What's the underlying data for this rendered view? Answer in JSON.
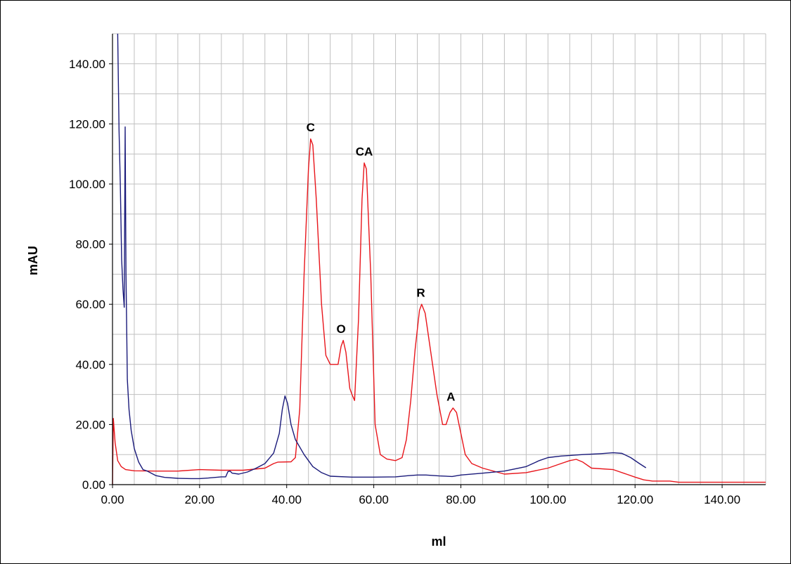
{
  "chart_data": {
    "type": "line",
    "title": "",
    "xlabel": "ml",
    "ylabel": "mAU",
    "xlim": [
      0,
      150
    ],
    "ylim": [
      0,
      150
    ],
    "x_ticks": [
      "0.00",
      "20.00",
      "40.00",
      "60.00",
      "80.00",
      "100.00",
      "120.00",
      "140.00"
    ],
    "y_ticks": [
      "0.00",
      "20.00",
      "40.00",
      "60.00",
      "80.00",
      "100.00",
      "120.00",
      "140.00"
    ],
    "grid": true,
    "legend": "none",
    "series": [
      {
        "color": "#e8151b",
        "points": [
          [
            0,
            0
          ],
          [
            0.2,
            22
          ],
          [
            0.6,
            14
          ],
          [
            1.2,
            8
          ],
          [
            2,
            6
          ],
          [
            3,
            5
          ],
          [
            5,
            4.6
          ],
          [
            10,
            4.5
          ],
          [
            15,
            4.5
          ],
          [
            20,
            5
          ],
          [
            25,
            4.8
          ],
          [
            30,
            4.8
          ],
          [
            35,
            5.5
          ],
          [
            37,
            7
          ],
          [
            38,
            7.5
          ],
          [
            41,
            7.6
          ],
          [
            42,
            9
          ],
          [
            43,
            25
          ],
          [
            44,
            70
          ],
          [
            45,
            105
          ],
          [
            45.5,
            115
          ],
          [
            46,
            113
          ],
          [
            46.8,
            95
          ],
          [
            48,
            60
          ],
          [
            49,
            43
          ],
          [
            50,
            40
          ],
          [
            51,
            40
          ],
          [
            51.8,
            40
          ],
          [
            52.5,
            46
          ],
          [
            53,
            48
          ],
          [
            53.6,
            44
          ],
          [
            54.5,
            32
          ],
          [
            55,
            30
          ],
          [
            55.6,
            28
          ],
          [
            56.5,
            55
          ],
          [
            57.3,
            95
          ],
          [
            57.8,
            107
          ],
          [
            58.3,
            105
          ],
          [
            59.3,
            70
          ],
          [
            60.3,
            20
          ],
          [
            61.5,
            10
          ],
          [
            63,
            8.5
          ],
          [
            65,
            8
          ],
          [
            66.5,
            9
          ],
          [
            67.5,
            15
          ],
          [
            68.5,
            28
          ],
          [
            69.5,
            45
          ],
          [
            70.5,
            58
          ],
          [
            71,
            60
          ],
          [
            71.8,
            57
          ],
          [
            73,
            45
          ],
          [
            74.5,
            30
          ],
          [
            75.8,
            20
          ],
          [
            76.6,
            20
          ],
          [
            77.5,
            24
          ],
          [
            78.2,
            25.5
          ],
          [
            79,
            24
          ],
          [
            80,
            17
          ],
          [
            81,
            10
          ],
          [
            82.5,
            7
          ],
          [
            85,
            5.5
          ],
          [
            90,
            3.5
          ],
          [
            95,
            4
          ],
          [
            100,
            5.5
          ],
          [
            103,
            7
          ],
          [
            105,
            8
          ],
          [
            106.5,
            8.4
          ],
          [
            108,
            7.5
          ],
          [
            110,
            5.5
          ],
          [
            115,
            5
          ],
          [
            118,
            3.5
          ],
          [
            120,
            2.5
          ],
          [
            122,
            1.6
          ],
          [
            124,
            1.2
          ],
          [
            128,
            1.2
          ],
          [
            130,
            0.8
          ],
          [
            140,
            0.8
          ],
          [
            150,
            0.8
          ]
        ]
      },
      {
        "color": "#1a1a7a",
        "points": [
          [
            1.2,
            150
          ],
          [
            1.5,
            118
          ],
          [
            1.8,
            100
          ],
          [
            2.1,
            75
          ],
          [
            2.4,
            65
          ],
          [
            2.7,
            59
          ],
          [
            2.9,
            119
          ],
          [
            3.1,
            70
          ],
          [
            3.4,
            35
          ],
          [
            3.8,
            25
          ],
          [
            4.3,
            18
          ],
          [
            5,
            12
          ],
          [
            6,
            7.5
          ],
          [
            7,
            5
          ],
          [
            8,
            4.5
          ],
          [
            10,
            3
          ],
          [
            12,
            2.4
          ],
          [
            15,
            2.1
          ],
          [
            18,
            2
          ],
          [
            20,
            2
          ],
          [
            22,
            2.2
          ],
          [
            25,
            2.6
          ],
          [
            26,
            2.6
          ],
          [
            26.5,
            4.3
          ],
          [
            27,
            4.5
          ],
          [
            27.5,
            3.8
          ],
          [
            29,
            3.5
          ],
          [
            31,
            4.2
          ],
          [
            33,
            5.5
          ],
          [
            35,
            7
          ],
          [
            37,
            10.5
          ],
          [
            38.3,
            17
          ],
          [
            39,
            25
          ],
          [
            39.6,
            29.5
          ],
          [
            40.2,
            27
          ],
          [
            41,
            20
          ],
          [
            42,
            15
          ],
          [
            44,
            10
          ],
          [
            46,
            6
          ],
          [
            48,
            4
          ],
          [
            50,
            2.8
          ],
          [
            55,
            2.5
          ],
          [
            60,
            2.5
          ],
          [
            65,
            2.6
          ],
          [
            68,
            3
          ],
          [
            70,
            3.2
          ],
          [
            72,
            3.2
          ],
          [
            75,
            2.9
          ],
          [
            78,
            2.7
          ],
          [
            80,
            3.2
          ],
          [
            85,
            3.8
          ],
          [
            90,
            4.5
          ],
          [
            95,
            6
          ],
          [
            98,
            8
          ],
          [
            100,
            9
          ],
          [
            103,
            9.5
          ],
          [
            108,
            10
          ],
          [
            112,
            10.3
          ],
          [
            115,
            10.6
          ],
          [
            117,
            10.4
          ],
          [
            119,
            9
          ],
          [
            121,
            7
          ],
          [
            122.5,
            5.6
          ]
        ]
      }
    ],
    "annotations": [
      {
        "text": "C",
        "x": 45.5,
        "y": 117
      },
      {
        "text": "CA",
        "x": 57.8,
        "y": 109
      },
      {
        "text": "O",
        "x": 52.5,
        "y": 50
      },
      {
        "text": "R",
        "x": 70.8,
        "y": 62
      },
      {
        "text": "A",
        "x": 77.7,
        "y": 27.5
      }
    ]
  }
}
